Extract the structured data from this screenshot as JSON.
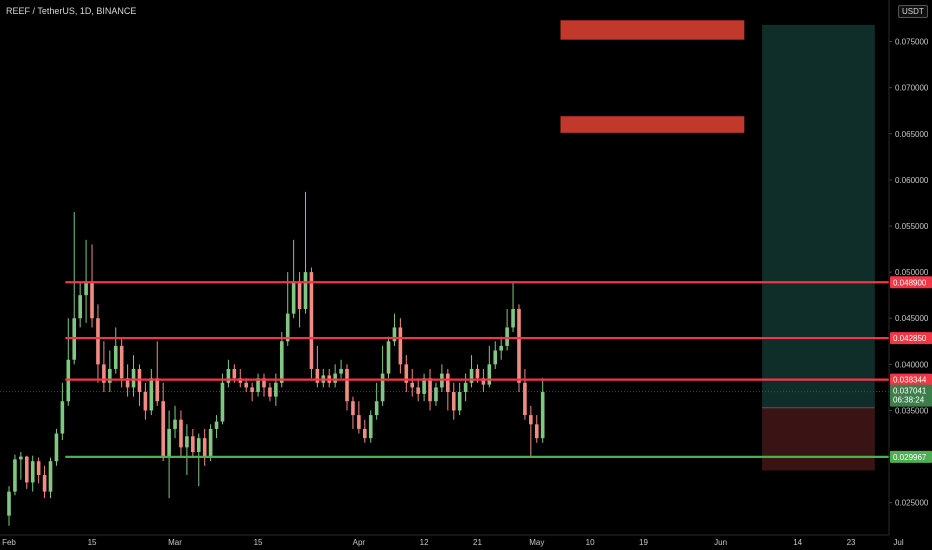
{
  "header": {
    "symbol_title": "REEF / TetherUS, 1D, BINANCE",
    "currency": "USDT"
  },
  "chart_data": {
    "type": "candlestick",
    "y_axis": {
      "min": 0.0215,
      "max": 0.0795,
      "ticks": [
        "0.075000",
        "0.070000",
        "0.065000",
        "0.060000",
        "0.055000",
        "0.050000",
        "0.045000",
        "0.040000",
        "0.035000",
        "0.030000",
        "0.025000"
      ]
    },
    "x_axis": {
      "labels": [
        {
          "text": "Feb",
          "day": 0
        },
        {
          "text": "15",
          "day": 14
        },
        {
          "text": "Mar",
          "day": 28
        },
        {
          "text": "15",
          "day": 42
        },
        {
          "text": "Apr",
          "day": 59
        },
        {
          "text": "12",
          "day": 70
        },
        {
          "text": "21",
          "day": 79
        },
        {
          "text": "May",
          "day": 89
        },
        {
          "text": "10",
          "day": 98
        },
        {
          "text": "19",
          "day": 107
        },
        {
          "text": "Jun",
          "day": 120
        },
        {
          "text": "14",
          "day": 133
        },
        {
          "text": "23",
          "day": 142
        },
        {
          "text": "Jul",
          "day": 150
        }
      ]
    },
    "candles": [
      [
        0.0236,
        0.0262,
        0.0225,
        0.0268
      ],
      [
        0.0262,
        0.0297,
        0.0258,
        0.0302
      ],
      [
        0.0297,
        0.03,
        0.0275,
        0.0305
      ],
      [
        0.03,
        0.0272,
        0.0265,
        0.0301
      ],
      [
        0.0272,
        0.0295,
        0.0262,
        0.0301
      ],
      [
        0.0295,
        0.028,
        0.0271,
        0.0299
      ],
      [
        0.028,
        0.0262,
        0.0255,
        0.029
      ],
      [
        0.0262,
        0.0295,
        0.0255,
        0.0299
      ],
      [
        0.0295,
        0.0325,
        0.029,
        0.033
      ],
      [
        0.0325,
        0.036,
        0.0318,
        0.038
      ],
      [
        0.036,
        0.0405,
        0.0355,
        0.045
      ],
      [
        0.0405,
        0.045,
        0.04,
        0.0565
      ],
      [
        0.045,
        0.0475,
        0.044,
        0.049
      ],
      [
        0.0475,
        0.049,
        0.0445,
        0.0535
      ],
      [
        0.049,
        0.045,
        0.044,
        0.053
      ],
      [
        0.045,
        0.04,
        0.038,
        0.0465
      ],
      [
        0.04,
        0.038,
        0.037,
        0.0425
      ],
      [
        0.038,
        0.0395,
        0.037,
        0.0415
      ],
      [
        0.0395,
        0.042,
        0.039,
        0.044
      ],
      [
        0.042,
        0.0385,
        0.0375,
        0.0428
      ],
      [
        0.0385,
        0.0375,
        0.0365,
        0.04
      ],
      [
        0.0375,
        0.0395,
        0.0365,
        0.041
      ],
      [
        0.0395,
        0.037,
        0.0355,
        0.04
      ],
      [
        0.037,
        0.035,
        0.034,
        0.038
      ],
      [
        0.035,
        0.0385,
        0.0345,
        0.0395
      ],
      [
        0.0385,
        0.036,
        0.0355,
        0.0425
      ],
      [
        0.036,
        0.03,
        0.0295,
        0.038
      ],
      [
        0.03,
        0.033,
        0.0255,
        0.035
      ],
      [
        0.033,
        0.034,
        0.032,
        0.0355
      ],
      [
        0.034,
        0.031,
        0.03,
        0.035
      ],
      [
        0.031,
        0.0322,
        0.028,
        0.0335
      ],
      [
        0.0322,
        0.0305,
        0.03,
        0.033
      ],
      [
        0.0305,
        0.032,
        0.0268,
        0.0325
      ],
      [
        0.032,
        0.03,
        0.029,
        0.033
      ],
      [
        0.03,
        0.033,
        0.0295,
        0.0335
      ],
      [
        0.033,
        0.0338,
        0.032,
        0.0345
      ],
      [
        0.0338,
        0.038,
        0.0335,
        0.039
      ],
      [
        0.038,
        0.0395,
        0.0375,
        0.0405
      ],
      [
        0.0395,
        0.0385,
        0.038,
        0.04
      ],
      [
        0.0385,
        0.038,
        0.0375,
        0.0395
      ],
      [
        0.038,
        0.0375,
        0.037,
        0.0385
      ],
      [
        0.0375,
        0.037,
        0.036,
        0.038
      ],
      [
        0.037,
        0.0385,
        0.0365,
        0.039
      ],
      [
        0.0385,
        0.0375,
        0.0365,
        0.039
      ],
      [
        0.0375,
        0.0365,
        0.036,
        0.038
      ],
      [
        0.0365,
        0.038,
        0.0355,
        0.039
      ],
      [
        0.038,
        0.0425,
        0.0375,
        0.0435
      ],
      [
        0.0425,
        0.0455,
        0.042,
        0.05
      ],
      [
        0.0455,
        0.049,
        0.045,
        0.0535
      ],
      [
        0.049,
        0.046,
        0.044,
        0.05
      ],
      [
        0.046,
        0.05,
        0.0455,
        0.0587
      ],
      [
        0.05,
        0.0395,
        0.0385,
        0.0505
      ],
      [
        0.0395,
        0.038,
        0.0375,
        0.042
      ],
      [
        0.038,
        0.0388,
        0.0375,
        0.0395
      ],
      [
        0.0388,
        0.038,
        0.0375,
        0.0395
      ],
      [
        0.038,
        0.039,
        0.0375,
        0.04
      ],
      [
        0.039,
        0.0395,
        0.0385,
        0.0405
      ],
      [
        0.0395,
        0.036,
        0.035,
        0.04
      ],
      [
        0.036,
        0.0345,
        0.033,
        0.0365
      ],
      [
        0.0345,
        0.033,
        0.0325,
        0.036
      ],
      [
        0.033,
        0.032,
        0.0315,
        0.034
      ],
      [
        0.032,
        0.0345,
        0.0315,
        0.035
      ],
      [
        0.0345,
        0.036,
        0.034,
        0.038
      ],
      [
        0.036,
        0.039,
        0.0355,
        0.042
      ],
      [
        0.039,
        0.0425,
        0.0385,
        0.043
      ],
      [
        0.0425,
        0.044,
        0.042,
        0.0455
      ],
      [
        0.044,
        0.04,
        0.039,
        0.045
      ],
      [
        0.04,
        0.038,
        0.037,
        0.041
      ],
      [
        0.038,
        0.0375,
        0.0365,
        0.0395
      ],
      [
        0.0375,
        0.0368,
        0.036,
        0.0385
      ],
      [
        0.0368,
        0.0385,
        0.036,
        0.039
      ],
      [
        0.0385,
        0.036,
        0.035,
        0.0395
      ],
      [
        0.036,
        0.0375,
        0.0355,
        0.038
      ],
      [
        0.0375,
        0.039,
        0.037,
        0.04
      ],
      [
        0.039,
        0.037,
        0.035,
        0.0395
      ],
      [
        0.037,
        0.035,
        0.034,
        0.038
      ],
      [
        0.035,
        0.037,
        0.0345,
        0.038
      ],
      [
        0.037,
        0.038,
        0.036,
        0.039
      ],
      [
        0.038,
        0.0395,
        0.0375,
        0.041
      ],
      [
        0.0395,
        0.0385,
        0.038,
        0.04
      ],
      [
        0.0385,
        0.0378,
        0.037,
        0.0395
      ],
      [
        0.0378,
        0.04,
        0.0375,
        0.042
      ],
      [
        0.04,
        0.0415,
        0.0395,
        0.0425
      ],
      [
        0.0415,
        0.042,
        0.0405,
        0.043
      ],
      [
        0.042,
        0.044,
        0.0415,
        0.046
      ],
      [
        0.044,
        0.046,
        0.0435,
        0.049
      ],
      [
        0.046,
        0.038,
        0.037,
        0.0465
      ],
      [
        0.038,
        0.0345,
        0.034,
        0.0395
      ],
      [
        0.0345,
        0.0335,
        0.03,
        0.0355
      ],
      [
        0.0335,
        0.032,
        0.0315,
        0.0345
      ],
      [
        0.032,
        0.037,
        0.0315,
        0.0385
      ]
    ],
    "horizontal_levels": [
      {
        "price": 0.0489,
        "label": "0.048900",
        "color": "#f23645"
      },
      {
        "price": 0.04285,
        "label": "0.042850",
        "color": "#f23645"
      },
      {
        "price": 0.038344,
        "label": "0.038344",
        "color": "#f23645"
      },
      {
        "price": 0.029967,
        "label": "0.029967",
        "color": "#4caf50"
      }
    ],
    "last_price": {
      "price": 0.037041,
      "label": "0.037041",
      "countdown": "06:38:24",
      "color": "#3c7e4a"
    },
    "target_zones": [
      {
        "price_high": 0.0773,
        "price_low": 0.0752,
        "color": "#c0392b"
      },
      {
        "price_high": 0.0669,
        "price_low": 0.0651,
        "color": "#c0392b"
      }
    ],
    "position": {
      "profit_top": 0.0768,
      "entry": 0.0353,
      "stop": 0.0285,
      "profit_color": "#0f2e2a",
      "loss_color": "#3a1414"
    },
    "colors": {
      "up": "#81c784",
      "down": "#f28b82",
      "background": "#000000",
      "axis_text": "#c8c8c8"
    }
  }
}
